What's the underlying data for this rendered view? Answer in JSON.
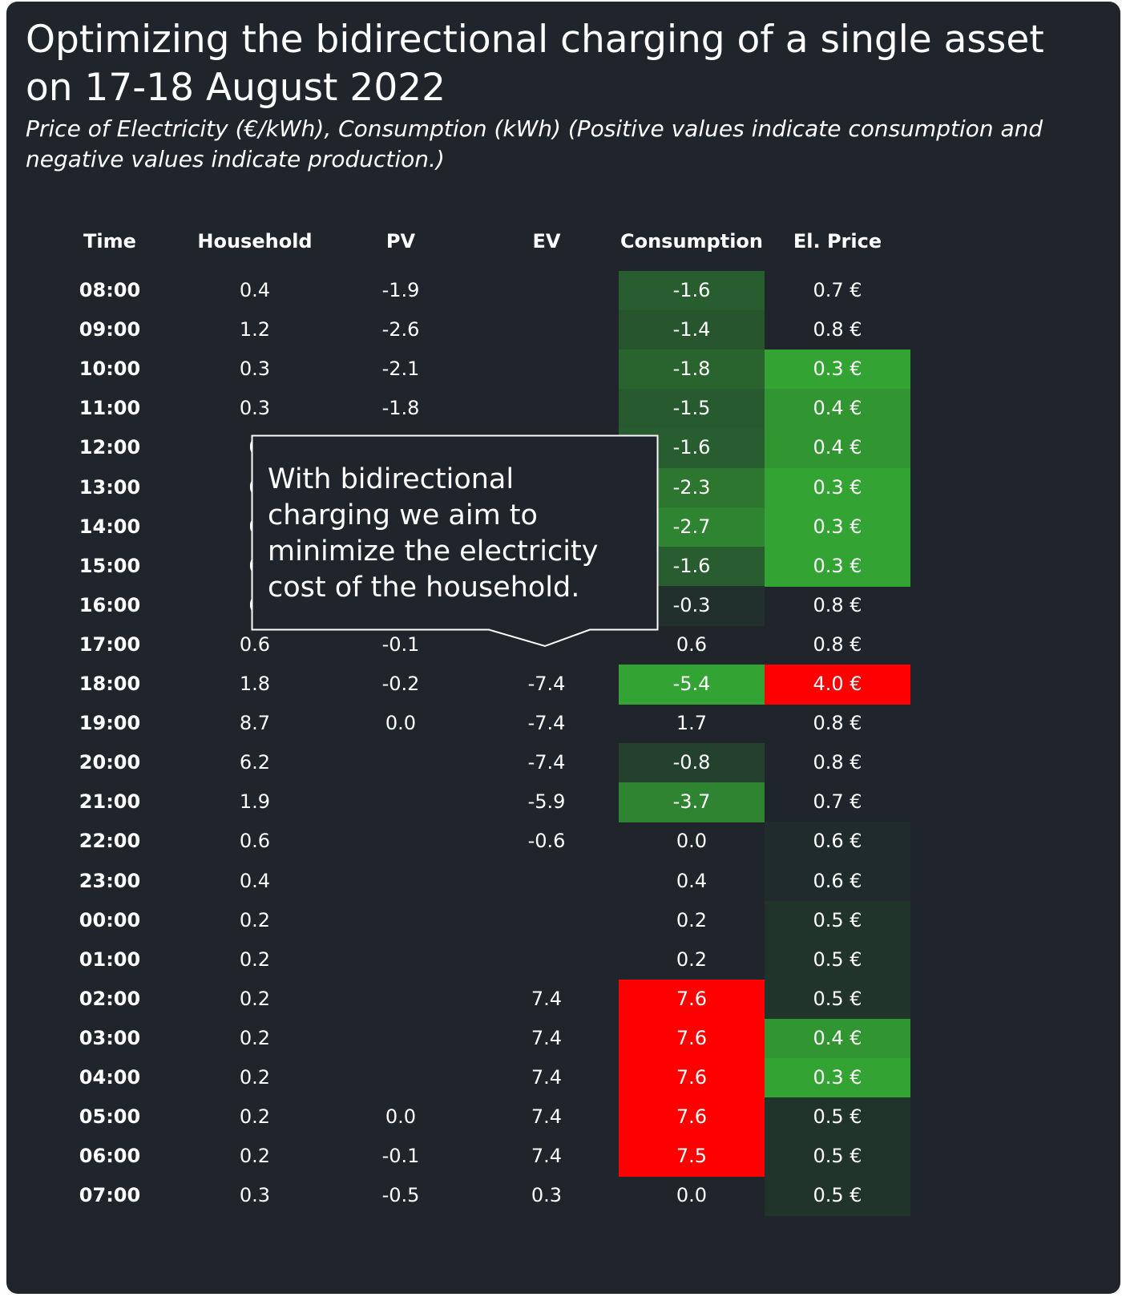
{
  "title": "Optimizing the bidirectional charging of a single asset on 17-18 August 2022",
  "subtitle": "Price of Electricity (€/kWh), Consumption (kWh) (Positive values indicate consumption and negative values indicate production.)",
  "callout": "With bidirectional charging we aim to minimize the electricity cost of the household.",
  "colors": {
    "background": "#1f252b",
    "green": "#33a333",
    "red": "#ff0000",
    "text": "#ffffff"
  },
  "chart_data": {
    "type": "table",
    "columns": [
      "Time",
      "Household",
      "PV",
      "EV",
      "Consumption",
      "El. Price"
    ],
    "price_suffix": " €",
    "rows": [
      {
        "time": "08:00",
        "household": "0.4",
        "pv": "-1.9",
        "ev": "",
        "consumption": "-1.6",
        "price": "0.7"
      },
      {
        "time": "09:00",
        "household": "1.2",
        "pv": "-2.6",
        "ev": "",
        "consumption": "-1.4",
        "price": "0.8"
      },
      {
        "time": "10:00",
        "household": "0.3",
        "pv": "-2.1",
        "ev": "",
        "consumption": "-1.8",
        "price": "0.3"
      },
      {
        "time": "11:00",
        "household": "0.3",
        "pv": "-1.8",
        "ev": "",
        "consumption": "-1.5",
        "price": "0.4"
      },
      {
        "time": "12:00",
        "household": "0",
        "pv": "",
        "ev": "",
        "consumption": "-1.6",
        "price": "0.4"
      },
      {
        "time": "13:00",
        "household": "0",
        "pv": "",
        "ev": "",
        "consumption": "-2.3",
        "price": "0.3"
      },
      {
        "time": "14:00",
        "household": "0",
        "pv": "",
        "ev": "",
        "consumption": "-2.7",
        "price": "0.3"
      },
      {
        "time": "15:00",
        "household": "0",
        "pv": "",
        "ev": "",
        "consumption": "-1.6",
        "price": "0.3"
      },
      {
        "time": "16:00",
        "household": "0",
        "pv": "",
        "ev": "",
        "consumption": "-0.3",
        "price": "0.8"
      },
      {
        "time": "17:00",
        "household": "0.6",
        "pv": "-0.1",
        "ev": "",
        "consumption": "0.6",
        "price": "0.8"
      },
      {
        "time": "18:00",
        "household": "1.8",
        "pv": "-0.2",
        "ev": "-7.4",
        "consumption": "-5.4",
        "price": "4.0"
      },
      {
        "time": "19:00",
        "household": "8.7",
        "pv": "0.0",
        "ev": "-7.4",
        "consumption": "1.7",
        "price": "0.8"
      },
      {
        "time": "20:00",
        "household": "6.2",
        "pv": "",
        "ev": "-7.4",
        "consumption": "-0.8",
        "price": "0.8"
      },
      {
        "time": "21:00",
        "household": "1.9",
        "pv": "",
        "ev": "-5.9",
        "consumption": "-3.7",
        "price": "0.7"
      },
      {
        "time": "22:00",
        "household": "0.6",
        "pv": "",
        "ev": "-0.6",
        "consumption": "0.0",
        "price": "0.6"
      },
      {
        "time": "23:00",
        "household": "0.4",
        "pv": "",
        "ev": "",
        "consumption": "0.4",
        "price": "0.6"
      },
      {
        "time": "00:00",
        "household": "0.2",
        "pv": "",
        "ev": "",
        "consumption": "0.2",
        "price": "0.5"
      },
      {
        "time": "01:00",
        "household": "0.2",
        "pv": "",
        "ev": "",
        "consumption": "0.2",
        "price": "0.5"
      },
      {
        "time": "02:00",
        "household": "0.2",
        "pv": "",
        "ev": "7.4",
        "consumption": "7.6",
        "price": "0.5"
      },
      {
        "time": "03:00",
        "household": "0.2",
        "pv": "",
        "ev": "7.4",
        "consumption": "7.6",
        "price": "0.4"
      },
      {
        "time": "04:00",
        "household": "0.2",
        "pv": "",
        "ev": "7.4",
        "consumption": "7.6",
        "price": "0.3"
      },
      {
        "time": "05:00",
        "household": "0.2",
        "pv": "0.0",
        "ev": "7.4",
        "consumption": "7.6",
        "price": "0.5"
      },
      {
        "time": "06:00",
        "household": "0.2",
        "pv": "-0.1",
        "ev": "7.4",
        "consumption": "7.5",
        "price": "0.5"
      },
      {
        "time": "07:00",
        "household": "0.3",
        "pv": "-0.5",
        "ev": "0.3",
        "consumption": "0.0",
        "price": "0.5"
      }
    ]
  }
}
